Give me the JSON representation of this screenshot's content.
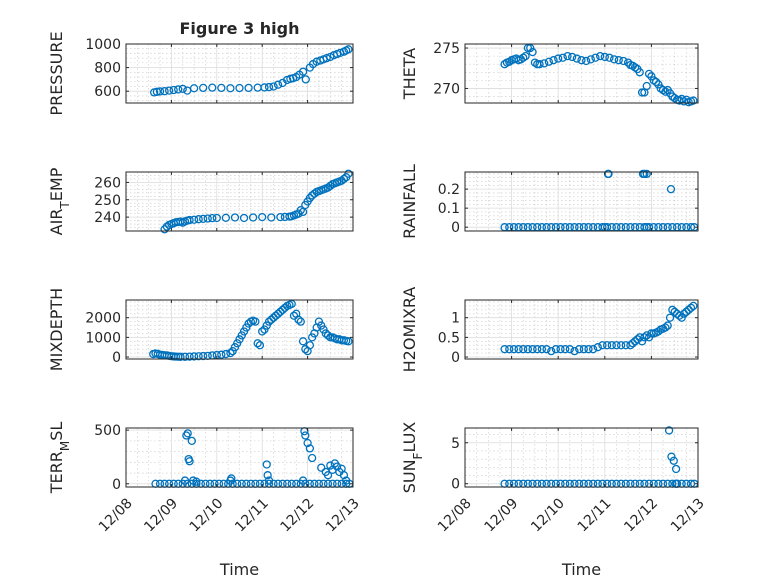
{
  "chart_data": [
    {
      "id": "pressure",
      "type": "scatter",
      "title": "Figure 3 high",
      "ylabel": "PRESSURE",
      "xlabel": "",
      "ylim": [
        500,
        1000
      ],
      "yticks": [
        600,
        800,
        1000
      ],
      "ytick_labels": [
        "600",
        "800",
        "1000"
      ],
      "xlim": [
        0,
        5
      ],
      "xticks": [
        0,
        1,
        2,
        3,
        4,
        5
      ],
      "xtick_labels": [],
      "grid": true,
      "marker": "circle",
      "color": "#0072BD",
      "x": [
        0.62,
        0.68,
        0.75,
        0.85,
        0.95,
        1.05,
        1.15,
        1.25,
        1.35,
        1.5,
        1.7,
        1.9,
        2.1,
        2.3,
        2.5,
        2.7,
        2.9,
        3.05,
        3.15,
        3.25,
        3.35,
        3.45,
        3.55,
        3.62,
        3.68,
        3.75,
        3.82,
        3.9,
        3.96,
        4.05,
        4.12,
        4.2,
        4.28,
        4.35,
        4.42,
        4.5,
        4.58,
        4.65,
        4.72,
        4.8,
        4.85,
        4.9
      ],
      "y": [
        590,
        595,
        598,
        600,
        605,
        610,
        615,
        620,
        605,
        625,
        628,
        630,
        628,
        625,
        627,
        628,
        630,
        632,
        635,
        640,
        655,
        670,
        695,
        705,
        710,
        720,
        740,
        765,
        700,
        800,
        830,
        850,
        860,
        870,
        880,
        890,
        905,
        915,
        925,
        935,
        945,
        955
      ]
    },
    {
      "id": "theta",
      "type": "scatter",
      "title": "",
      "ylabel": "THETA",
      "xlabel": "",
      "ylim": [
        268.2,
        275.5
      ],
      "yticks": [
        270,
        275
      ],
      "ytick_labels": [
        "270",
        "275"
      ],
      "xlim": [
        0,
        5
      ],
      "xticks": [
        0,
        1,
        2,
        3,
        4,
        5
      ],
      "xtick_labels": [],
      "grid": true,
      "marker": "circle",
      "color": "#0072BD",
      "x": [
        0.85,
        0.9,
        0.95,
        1.0,
        1.05,
        1.1,
        1.15,
        1.2,
        1.25,
        1.3,
        1.35,
        1.4,
        1.45,
        1.5,
        1.55,
        1.6,
        1.7,
        1.8,
        1.9,
        2.0,
        2.1,
        2.2,
        2.3,
        2.4,
        2.5,
        2.6,
        2.7,
        2.8,
        2.9,
        3.0,
        3.1,
        3.2,
        3.3,
        3.4,
        3.5,
        3.55,
        3.6,
        3.65,
        3.7,
        3.75,
        3.8,
        3.85,
        3.9,
        3.95,
        4.0,
        4.05,
        4.1,
        4.15,
        4.2,
        4.25,
        4.3,
        4.35,
        4.4,
        4.45,
        4.5,
        4.55,
        4.6,
        4.65,
        4.7,
        4.75,
        4.8,
        4.85,
        4.9
      ],
      "y": [
        273.0,
        273.2,
        273.3,
        273.5,
        273.6,
        273.7,
        273.5,
        273.6,
        273.8,
        274.0,
        275.0,
        275.0,
        274.5,
        273.2,
        273.0,
        273.0,
        273.1,
        273.3,
        273.5,
        273.7,
        273.8,
        274.0,
        273.9,
        273.7,
        273.5,
        273.4,
        273.6,
        273.8,
        274.0,
        273.9,
        273.8,
        273.6,
        273.5,
        273.4,
        273.2,
        272.9,
        272.8,
        272.6,
        272.4,
        272.0,
        269.5,
        269.5,
        270.3,
        271.8,
        271.5,
        271.0,
        270.8,
        270.5,
        270.0,
        269.8,
        269.6,
        269.8,
        269.4,
        269.0,
        268.8,
        268.6,
        268.5,
        268.7,
        268.4,
        268.6,
        268.3,
        268.4,
        268.5
      ]
    },
    {
      "id": "air_temp",
      "type": "scatter",
      "title": "",
      "ylabel": "AIR_TEMP",
      "xlabel": "",
      "ylim": [
        232,
        266
      ],
      "yticks": [
        240,
        250,
        260
      ],
      "ytick_labels": [
        "240",
        "250",
        "260"
      ],
      "xlim": [
        0,
        5
      ],
      "xticks": [
        0,
        1,
        2,
        3,
        4,
        5
      ],
      "xtick_labels": [],
      "grid": true,
      "marker": "circle",
      "color": "#0072BD",
      "x": [
        0.85,
        0.9,
        0.95,
        1.0,
        1.05,
        1.1,
        1.15,
        1.2,
        1.25,
        1.3,
        1.35,
        1.4,
        1.5,
        1.6,
        1.7,
        1.8,
        1.9,
        2.0,
        2.2,
        2.4,
        2.6,
        2.8,
        3.0,
        3.2,
        3.4,
        3.5,
        3.6,
        3.65,
        3.7,
        3.75,
        3.8,
        3.85,
        3.9,
        3.95,
        4.0,
        4.05,
        4.1,
        4.15,
        4.2,
        4.25,
        4.3,
        4.35,
        4.4,
        4.45,
        4.5,
        4.55,
        4.6,
        4.65,
        4.7,
        4.75,
        4.8,
        4.85,
        4.9
      ],
      "y": [
        233.0,
        234.5,
        235.5,
        236.0,
        236.5,
        237.0,
        237.2,
        237.4,
        236.8,
        237.5,
        238.0,
        238.3,
        238.5,
        238.8,
        239.0,
        239.2,
        239.4,
        239.5,
        239.6,
        239.8,
        239.5,
        239.8,
        240.0,
        239.8,
        240.0,
        240.1,
        240.3,
        240.5,
        241.0,
        241.5,
        242.0,
        244.0,
        243.0,
        247.0,
        249.0,
        251.0,
        252.5,
        253.5,
        254.5,
        255.0,
        255.5,
        256.0,
        256.5,
        257.0,
        258.0,
        259.0,
        259.5,
        260.0,
        260.5,
        261.0,
        262.0,
        263.0,
        265.0
      ]
    },
    {
      "id": "rainfall",
      "type": "scatter",
      "title": "",
      "ylabel": "RAINFALL",
      "xlabel": "",
      "ylim": [
        -0.02,
        0.29
      ],
      "yticks": [
        0,
        0.1,
        0.2
      ],
      "ytick_labels": [
        "0",
        "0.1",
        "0.2"
      ],
      "xlim": [
        0,
        5
      ],
      "xticks": [
        0,
        1,
        2,
        3,
        4,
        5
      ],
      "xtick_labels": [],
      "grid": true,
      "marker": "circle",
      "color": "#0072BD",
      "x": [
        0.85,
        0.95,
        1.05,
        1.15,
        1.25,
        1.35,
        1.45,
        1.55,
        1.65,
        1.75,
        1.85,
        1.95,
        2.05,
        2.15,
        2.25,
        2.35,
        2.45,
        2.55,
        2.65,
        2.75,
        2.85,
        2.95,
        3.0,
        3.05,
        3.15,
        3.25,
        3.35,
        3.45,
        3.55,
        3.65,
        3.75,
        3.85,
        3.9,
        3.95,
        4.05,
        4.15,
        4.25,
        4.35,
        4.45,
        4.55,
        4.65,
        4.75,
        4.85,
        4.92,
        3.07,
        3.08,
        3.82,
        3.85,
        3.9,
        4.42
      ],
      "y": [
        0,
        0,
        0,
        0,
        0,
        0,
        0,
        0,
        0,
        0,
        0,
        0,
        0,
        0,
        0,
        0,
        0,
        0,
        0,
        0,
        0,
        0,
        0,
        0,
        0,
        0,
        0,
        0,
        0,
        0,
        0,
        0,
        0,
        0,
        0,
        0,
        0,
        0,
        0,
        0,
        0,
        0,
        0,
        0,
        0.28,
        0.28,
        0.28,
        0.28,
        0.28,
        0.2
      ]
    },
    {
      "id": "mixdepth",
      "type": "scatter",
      "title": "",
      "ylabel": "MIXDEPTH",
      "xlabel": "",
      "ylim": [
        -100,
        2900
      ],
      "yticks": [
        0,
        1000,
        2000
      ],
      "ytick_labels": [
        "0",
        "1000",
        "2000"
      ],
      "xlim": [
        0,
        5
      ],
      "xticks": [
        0,
        1,
        2,
        3,
        4,
        5
      ],
      "xtick_labels": [],
      "grid": true,
      "marker": "circle",
      "color": "#0072BD",
      "x": [
        0.6,
        0.65,
        0.7,
        0.75,
        0.8,
        0.85,
        0.9,
        0.95,
        1.0,
        1.05,
        1.1,
        1.15,
        1.2,
        1.3,
        1.4,
        1.5,
        1.6,
        1.7,
        1.8,
        1.9,
        2.0,
        2.1,
        2.2,
        2.3,
        2.35,
        2.4,
        2.45,
        2.5,
        2.55,
        2.6,
        2.65,
        2.7,
        2.75,
        2.8,
        2.85,
        2.9,
        2.95,
        3.0,
        3.05,
        3.1,
        3.15,
        3.2,
        3.25,
        3.3,
        3.35,
        3.4,
        3.45,
        3.5,
        3.55,
        3.6,
        3.65,
        3.7,
        3.75,
        3.8,
        3.85,
        3.9,
        3.95,
        4.0,
        4.05,
        4.1,
        4.15,
        4.2,
        4.25,
        4.3,
        4.35,
        4.4,
        4.45,
        4.5,
        4.55,
        4.6,
        4.65,
        4.7,
        4.75,
        4.8,
        4.85,
        4.9
      ],
      "y": [
        150,
        180,
        160,
        120,
        100,
        90,
        80,
        60,
        40,
        30,
        20,
        15,
        10,
        10,
        20,
        30,
        40,
        50,
        60,
        80,
        100,
        120,
        150,
        200,
        300,
        500,
        700,
        900,
        1100,
        1300,
        1500,
        1700,
        1800,
        1850,
        1800,
        700,
        600,
        1300,
        1400,
        1600,
        1800,
        1900,
        2000,
        2100,
        2200,
        2300,
        2400,
        2500,
        2600,
        2650,
        2700,
        2100,
        2200,
        1900,
        1800,
        800,
        400,
        300,
        600,
        1000,
        1200,
        1500,
        1800,
        1600,
        1400,
        1200,
        1100,
        1000,
        1000,
        950,
        900,
        900,
        850,
        850,
        820,
        800
      ]
    },
    {
      "id": "h2omixra",
      "type": "scatter",
      "title": "",
      "ylabel": "H2OMIXRA",
      "xlabel": "",
      "ylim": [
        -0.05,
        1.45
      ],
      "yticks": [
        0,
        0.5,
        1
      ],
      "ytick_labels": [
        "0",
        "0.5",
        "1"
      ],
      "xlim": [
        0,
        5
      ],
      "xticks": [
        0,
        1,
        2,
        3,
        4,
        5
      ],
      "xtick_labels": [],
      "grid": true,
      "marker": "circle",
      "color": "#0072BD",
      "x": [
        0.85,
        0.95,
        1.05,
        1.15,
        1.25,
        1.35,
        1.45,
        1.55,
        1.65,
        1.75,
        1.85,
        1.95,
        2.05,
        2.15,
        2.25,
        2.35,
        2.45,
        2.55,
        2.65,
        2.75,
        2.85,
        2.95,
        3.05,
        3.15,
        3.25,
        3.35,
        3.45,
        3.55,
        3.6,
        3.65,
        3.7,
        3.75,
        3.8,
        3.85,
        3.9,
        3.95,
        4.0,
        4.05,
        4.1,
        4.15,
        4.2,
        4.25,
        4.3,
        4.35,
        4.4,
        4.45,
        4.5,
        4.55,
        4.6,
        4.65,
        4.7,
        4.75,
        4.8,
        4.85,
        4.9
      ],
      "y": [
        0.2,
        0.2,
        0.2,
        0.2,
        0.2,
        0.2,
        0.2,
        0.2,
        0.2,
        0.2,
        0.15,
        0.2,
        0.2,
        0.2,
        0.2,
        0.15,
        0.2,
        0.2,
        0.2,
        0.2,
        0.25,
        0.3,
        0.3,
        0.3,
        0.3,
        0.3,
        0.3,
        0.3,
        0.35,
        0.4,
        0.45,
        0.5,
        0.4,
        0.5,
        0.55,
        0.5,
        0.6,
        0.6,
        0.62,
        0.65,
        0.7,
        0.72,
        0.75,
        0.8,
        1.0,
        1.2,
        1.15,
        1.1,
        1.05,
        1.0,
        1.1,
        1.15,
        1.2,
        1.25,
        1.3
      ]
    },
    {
      "id": "terr_msl",
      "type": "scatter",
      "title": "",
      "ylabel": "TERR_MSL",
      "xlabel": "Time",
      "ylim": [
        -30,
        520
      ],
      "yticks": [
        0,
        500
      ],
      "ytick_labels": [
        "0",
        "500"
      ],
      "xlim": [
        0,
        5
      ],
      "xticks": [
        0,
        1,
        2,
        3,
        4,
        5
      ],
      "xtick_labels": [
        "12/08",
        "12/09",
        "12/10",
        "12/11",
        "12/12",
        "12/13"
      ],
      "grid": true,
      "marker": "circle",
      "color": "#0072BD",
      "x": [
        0.65,
        0.75,
        0.85,
        0.95,
        1.05,
        1.15,
        1.25,
        1.35,
        1.45,
        1.55,
        1.65,
        1.75,
        1.85,
        1.95,
        2.05,
        2.15,
        2.25,
        2.35,
        2.45,
        2.55,
        2.65,
        2.75,
        2.85,
        2.95,
        3.05,
        3.15,
        3.25,
        3.35,
        3.45,
        3.55,
        3.65,
        3.75,
        3.85,
        3.95,
        4.05,
        4.15,
        4.25,
        4.35,
        4.45,
        4.55,
        4.65,
        4.75,
        4.85,
        4.92,
        1.3,
        1.33,
        1.36,
        1.38,
        1.4,
        1.45,
        1.48,
        1.55,
        2.3,
        2.32,
        3.1,
        3.12,
        3.15,
        3.9,
        3.93,
        3.95,
        4.0,
        4.05,
        4.1,
        4.3,
        4.4,
        4.45,
        4.5,
        4.55,
        4.6,
        4.65,
        4.7,
        4.75,
        4.8,
        4.85
      ],
      "y": [
        0,
        0,
        0,
        0,
        0,
        0,
        0,
        0,
        0,
        0,
        0,
        0,
        0,
        0,
        0,
        0,
        0,
        0,
        0,
        0,
        0,
        0,
        0,
        0,
        0,
        0,
        0,
        0,
        0,
        0,
        0,
        0,
        0,
        0,
        0,
        0,
        0,
        0,
        0,
        0,
        0,
        0,
        0,
        0,
        30,
        450,
        470,
        230,
        210,
        400,
        30,
        20,
        30,
        50,
        180,
        80,
        30,
        30,
        490,
        450,
        380,
        330,
        240,
        150,
        110,
        80,
        170,
        130,
        190,
        160,
        110,
        140,
        80,
        30
      ]
    },
    {
      "id": "sun_flux",
      "type": "scatter",
      "title": "",
      "ylabel": "SUN_FLUX",
      "xlabel": "Time",
      "ylim": [
        -0.4,
        6.8
      ],
      "yticks": [
        0,
        5
      ],
      "ytick_labels": [
        "0",
        "5"
      ],
      "xlim": [
        0,
        5
      ],
      "xticks": [
        0,
        1,
        2,
        3,
        4,
        5
      ],
      "xtick_labels": [
        "12/08",
        "12/09",
        "12/10",
        "12/11",
        "12/12",
        "12/13"
      ],
      "grid": true,
      "marker": "circle",
      "color": "#0072BD",
      "x": [
        0.85,
        0.95,
        1.05,
        1.15,
        1.25,
        1.35,
        1.45,
        1.55,
        1.65,
        1.75,
        1.85,
        1.95,
        2.05,
        2.15,
        2.25,
        2.35,
        2.45,
        2.55,
        2.65,
        2.75,
        2.85,
        2.95,
        3.05,
        3.15,
        3.25,
        3.35,
        3.45,
        3.55,
        3.65,
        3.75,
        3.85,
        3.95,
        4.05,
        4.15,
        4.25,
        4.35,
        4.45,
        4.55,
        4.65,
        4.75,
        4.85,
        4.92,
        4.38,
        4.43,
        4.48,
        4.53,
        4.55,
        4.52
      ],
      "y": [
        0,
        0,
        0,
        0,
        0,
        0,
        0,
        0,
        0,
        0,
        0,
        0,
        0,
        0,
        0,
        0,
        0,
        0,
        0,
        0,
        0,
        0,
        0,
        0,
        0,
        0,
        0,
        0,
        0,
        0,
        0,
        0,
        0,
        0,
        0,
        0,
        0,
        0,
        0,
        0,
        0,
        0,
        6.5,
        3.3,
        2.8,
        1.8,
        0,
        0
      ]
    }
  ],
  "colors": {
    "marker": "#0072BD",
    "axis": "#262626"
  }
}
